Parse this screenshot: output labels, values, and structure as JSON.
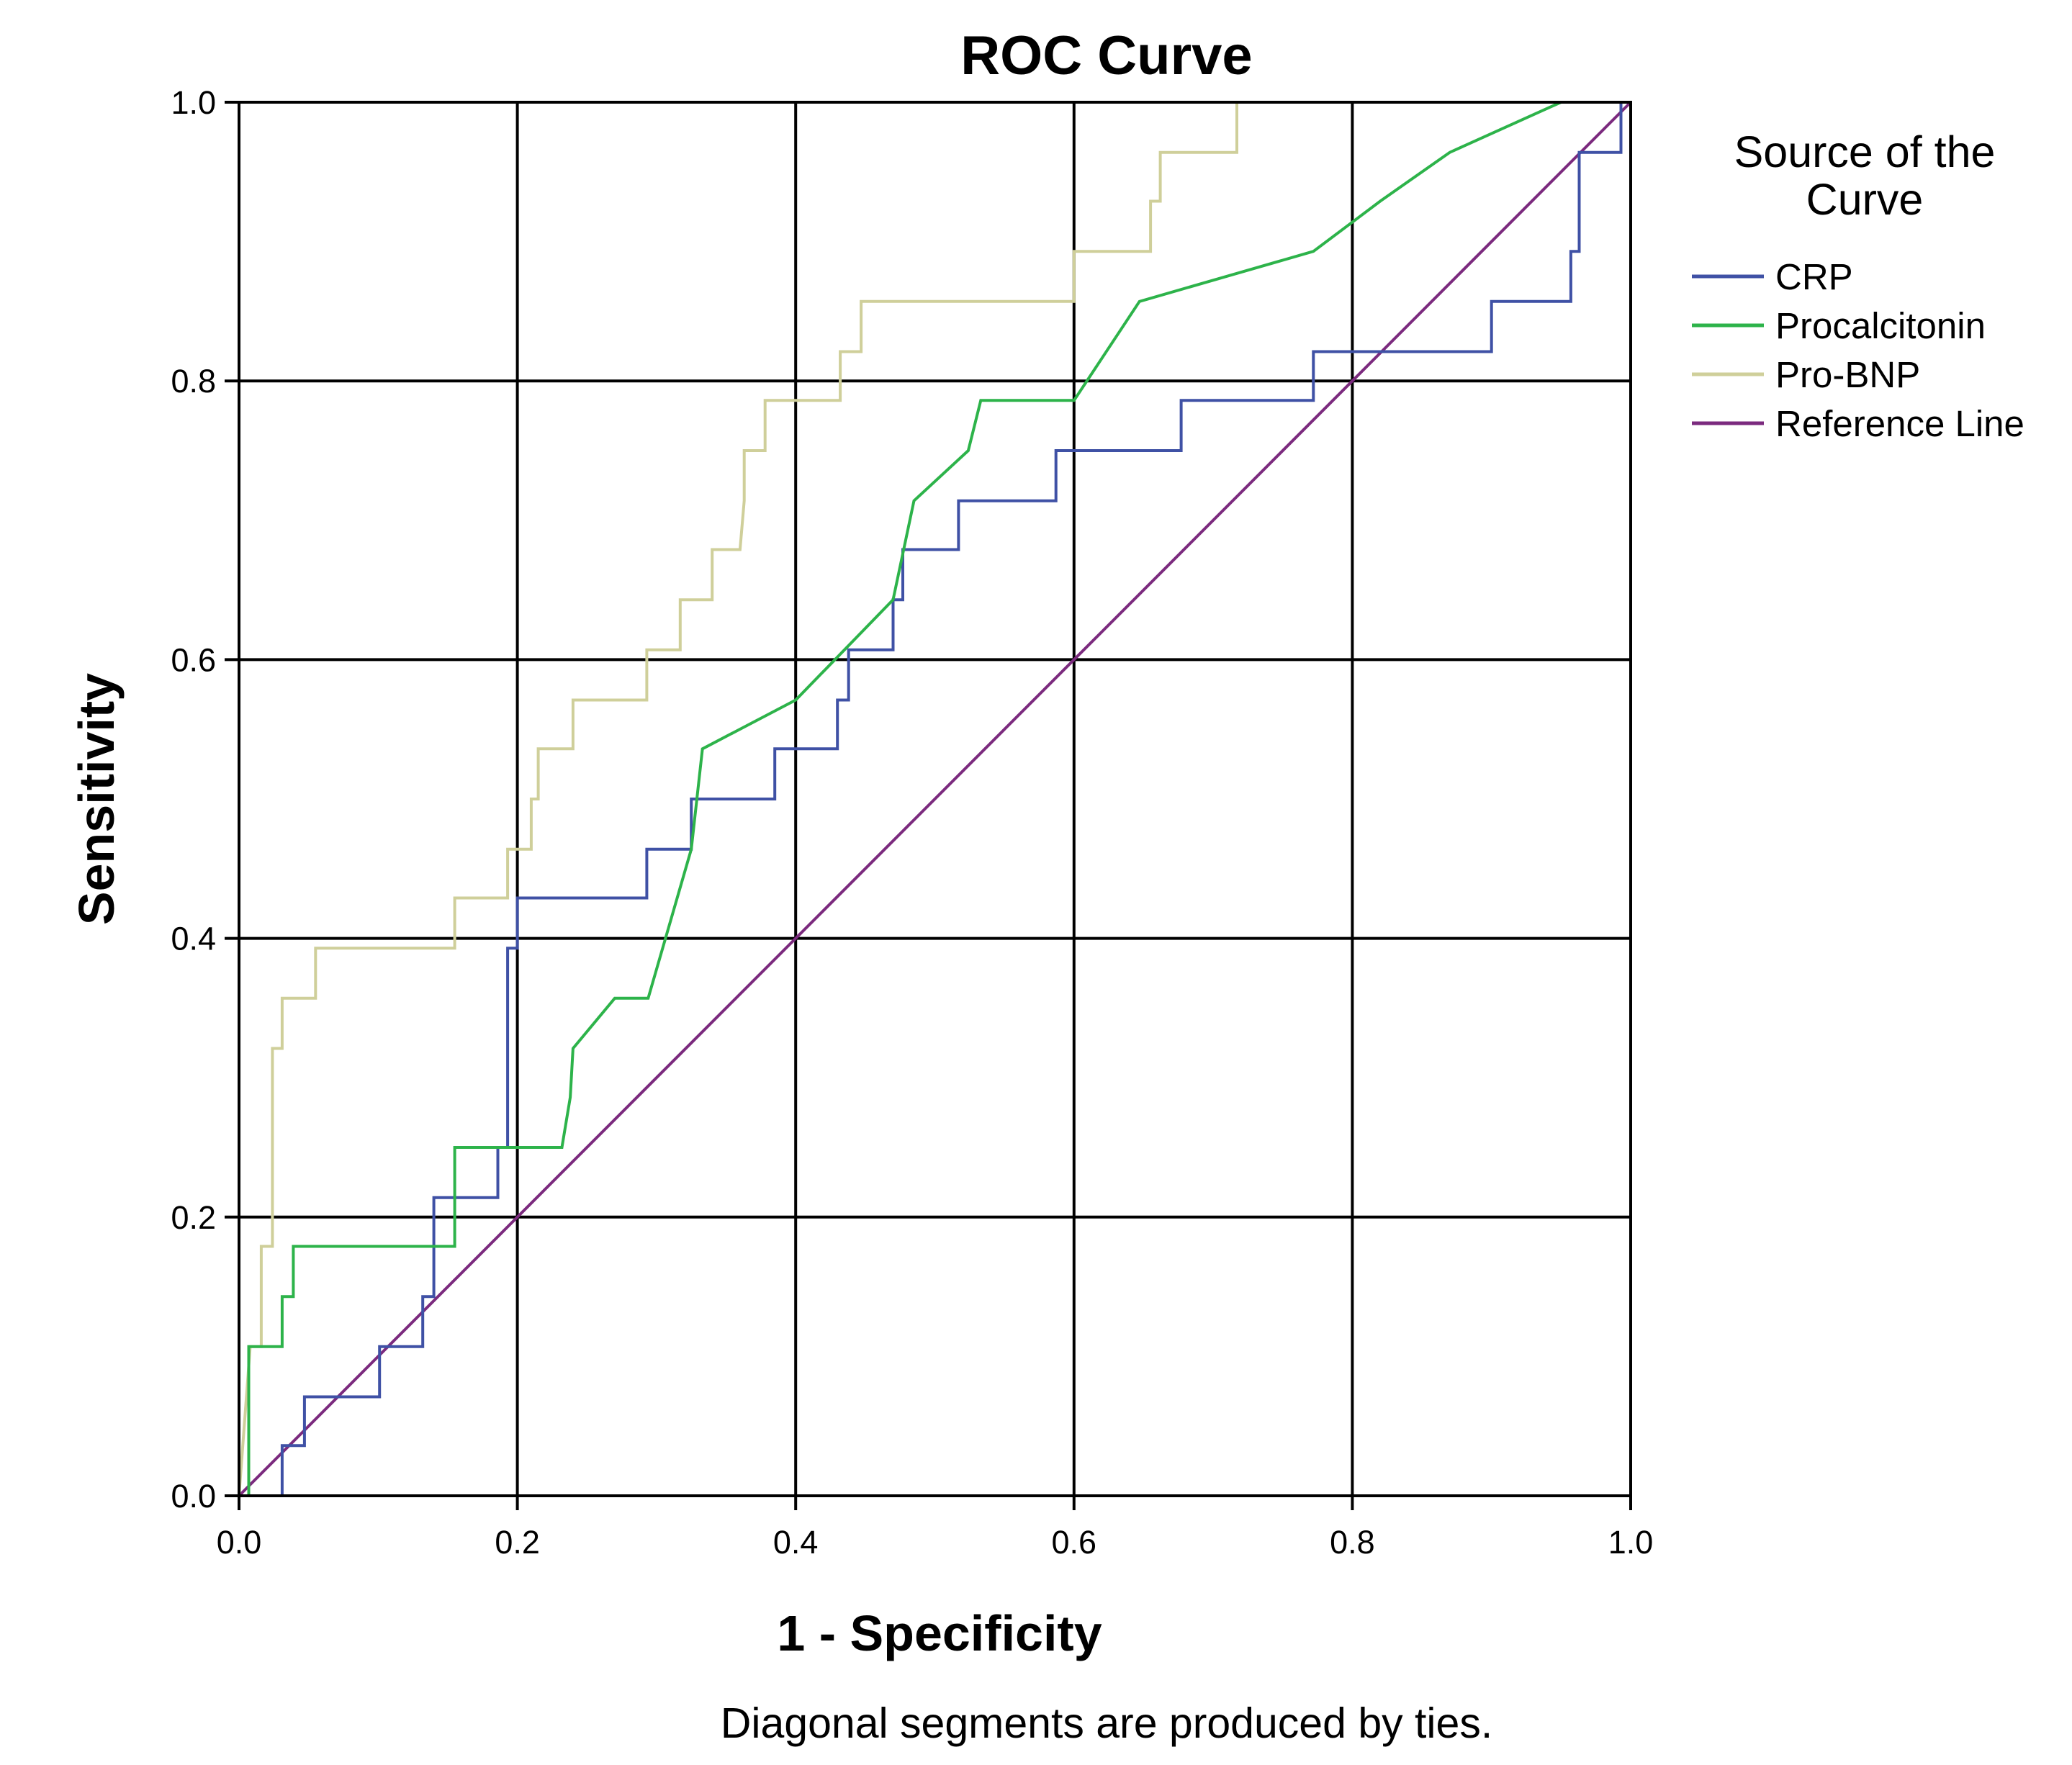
{
  "chart_data": {
    "type": "line",
    "title": "ROC Curve",
    "xlabel": "1 - Specificity",
    "ylabel": "Sensitivity",
    "xlim": [
      0,
      1
    ],
    "ylim": [
      0,
      1
    ],
    "xticks": [
      "0.0",
      "0.2",
      "0.4",
      "0.6",
      "0.8",
      "1.0"
    ],
    "yticks": [
      "0.0",
      "0.2",
      "0.4",
      "0.6",
      "0.8",
      "1.0"
    ],
    "grid": true,
    "legend": {
      "title_lines": [
        "Source of the",
        "Curve"
      ],
      "placement": "right"
    },
    "note": "Diagonal segments are produced by ties.",
    "series": [
      {
        "name": "CRP",
        "color": "#3f51a5",
        "x": [
          0.0,
          0.031,
          0.031,
          0.047,
          0.047,
          0.101,
          0.101,
          0.132,
          0.132,
          0.14,
          0.14,
          0.186,
          0.186,
          0.193,
          0.193,
          0.2,
          0.2,
          0.293,
          0.293,
          0.325,
          0.325,
          0.385,
          0.385,
          0.43,
          0.43,
          0.438,
          0.438,
          0.47,
          0.47,
          0.477,
          0.477,
          0.517,
          0.517,
          0.587,
          0.587,
          0.677,
          0.677,
          0.772,
          0.772,
          0.9,
          0.9,
          0.957,
          0.957,
          0.963,
          0.963,
          0.993,
          0.993
        ],
        "y": [
          0.0,
          0.0,
          0.036,
          0.036,
          0.071,
          0.071,
          0.107,
          0.107,
          0.143,
          0.143,
          0.214,
          0.214,
          0.25,
          0.25,
          0.393,
          0.393,
          0.429,
          0.429,
          0.464,
          0.464,
          0.5,
          0.5,
          0.536,
          0.536,
          0.571,
          0.571,
          0.607,
          0.607,
          0.643,
          0.643,
          0.679,
          0.679,
          0.714,
          0.714,
          0.75,
          0.75,
          0.786,
          0.786,
          0.821,
          0.821,
          0.857,
          0.857,
          0.893,
          0.893,
          0.964,
          0.964,
          1.0
        ]
      },
      {
        "name": "Procalcitonin",
        "color": "#2db34a",
        "x": [
          0.0,
          0.007,
          0.007,
          0.031,
          0.031,
          0.039,
          0.039,
          0.155,
          0.155,
          0.232,
          0.238,
          0.24,
          0.27,
          0.294,
          0.325,
          0.333,
          0.4,
          0.47,
          0.485,
          0.524,
          0.533,
          0.6,
          0.647,
          0.772,
          0.82,
          0.87,
          0.95
        ],
        "y": [
          0.0,
          0.0,
          0.107,
          0.107,
          0.143,
          0.143,
          0.179,
          0.179,
          0.25,
          0.25,
          0.286,
          0.321,
          0.357,
          0.357,
          0.464,
          0.536,
          0.571,
          0.643,
          0.714,
          0.75,
          0.786,
          0.786,
          0.857,
          0.893,
          0.929,
          0.964,
          1.0
        ]
      },
      {
        "name": "Pro-BNP",
        "color": "#cfcf9a",
        "x": [
          0.0,
          0.008,
          0.016,
          0.016,
          0.024,
          0.024,
          0.031,
          0.031,
          0.055,
          0.055,
          0.155,
          0.155,
          0.193,
          0.193,
          0.21,
          0.21,
          0.215,
          0.215,
          0.24,
          0.24,
          0.293,
          0.293,
          0.317,
          0.317,
          0.34,
          0.34,
          0.36,
          0.363,
          0.363,
          0.378,
          0.378,
          0.432,
          0.432,
          0.447,
          0.447,
          0.6,
          0.6,
          0.655,
          0.655,
          0.662,
          0.662,
          0.717,
          0.717
        ],
        "y": [
          0.0,
          0.107,
          0.107,
          0.179,
          0.179,
          0.321,
          0.321,
          0.357,
          0.357,
          0.393,
          0.393,
          0.429,
          0.429,
          0.464,
          0.464,
          0.5,
          0.5,
          0.536,
          0.536,
          0.571,
          0.571,
          0.607,
          0.607,
          0.643,
          0.643,
          0.679,
          0.679,
          0.714,
          0.75,
          0.75,
          0.786,
          0.786,
          0.821,
          0.821,
          0.857,
          0.857,
          0.893,
          0.893,
          0.929,
          0.929,
          0.964,
          0.964,
          1.0
        ]
      },
      {
        "name": "Reference Line",
        "color": "#7b2a7e",
        "x": [
          0.0,
          1.0
        ],
        "y": [
          0.0,
          1.0
        ]
      }
    ]
  }
}
